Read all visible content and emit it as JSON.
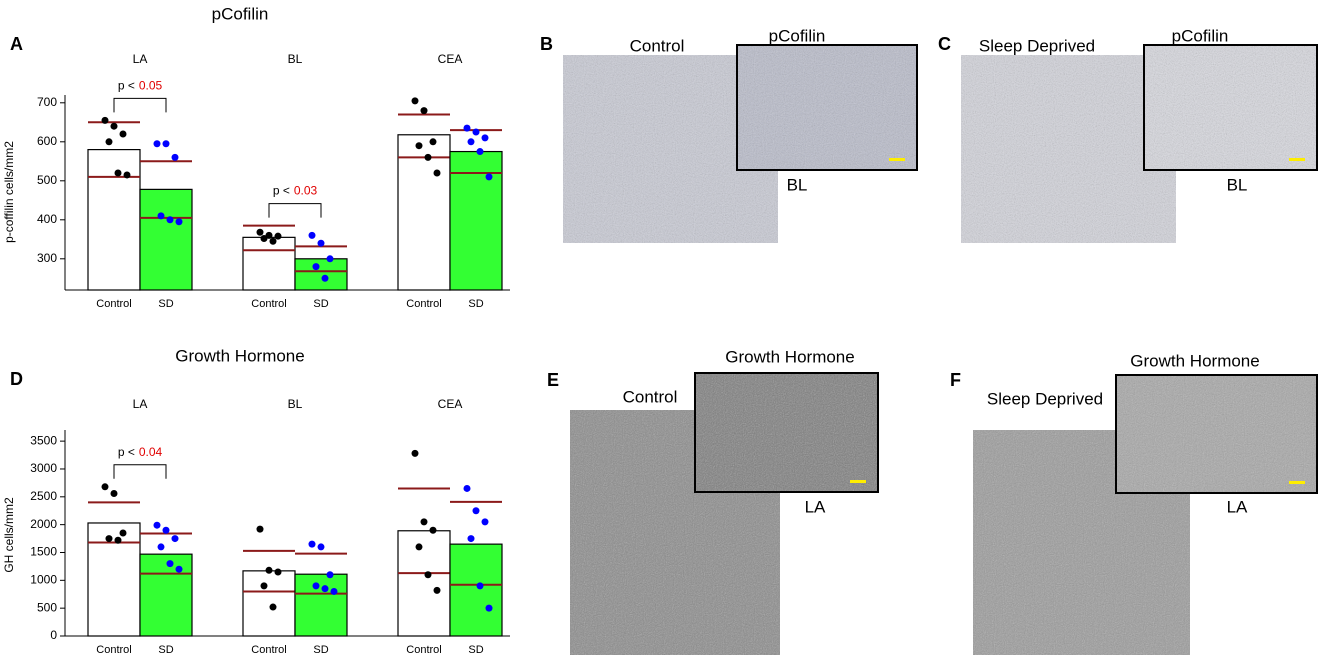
{
  "chart_data": [
    {
      "type": "bar",
      "title": "pCofilin",
      "panel": "A",
      "y_label": "p-coffilin cells/mm2",
      "groups": [
        "LA",
        "BL",
        "CEA"
      ],
      "ylim": [
        220,
        720
      ],
      "yticks": [
        300,
        400,
        500,
        600,
        700
      ],
      "annotations": [
        {
          "text": "p <",
          "value": "0.05"
        },
        {
          "text": "p <",
          "value": "0.03"
        }
      ],
      "series": [
        {
          "name": "Control",
          "color": "#ffffff",
          "point_color": "#000000",
          "sd_color": "#8b1a1a",
          "values": [
            580,
            355,
            618
          ],
          "sd_upper": [
            650,
            385,
            670
          ],
          "sd_lower": [
            510,
            322,
            560
          ],
          "points": [
            [
              655,
              640,
              620,
              600,
              520,
              515
            ],
            [
              368,
              360,
              358,
              352,
              345
            ],
            [
              705,
              680,
              600,
              590,
              560,
              520
            ]
          ]
        },
        {
          "name": "SD",
          "color": "#33ff33",
          "point_color": "#0000ff",
          "sd_color": "#8b1a1a",
          "values": [
            478,
            300,
            575
          ],
          "sd_upper": [
            550,
            332,
            630
          ],
          "sd_lower": [
            405,
            268,
            520
          ],
          "points": [
            [
              595,
              595,
              560,
              410,
              400,
              395
            ],
            [
              360,
              340,
              300,
              280,
              250
            ],
            [
              635,
              625,
              610,
              600,
              575,
              510
            ]
          ]
        }
      ]
    },
    {
      "type": "bar",
      "title": "Growth Hormone",
      "panel": "D",
      "y_label": "GH cells/mm2",
      "groups": [
        "LA",
        "BL",
        "CEA"
      ],
      "ylim": [
        0,
        3700
      ],
      "yticks": [
        0,
        500,
        1000,
        1500,
        2000,
        2500,
        3000,
        3500
      ],
      "annotations": [
        {
          "text": "p <",
          "value": "0.04"
        }
      ],
      "series": [
        {
          "name": "Control",
          "color": "#ffffff",
          "point_color": "#000000",
          "sd_color": "#8b1a1a",
          "values": [
            2030,
            1170,
            1890
          ],
          "sd_upper": [
            2400,
            1530,
            2650
          ],
          "sd_lower": [
            1680,
            800,
            1130
          ],
          "points": [
            [
              2680,
              2560,
              1850,
              1750,
              1720
            ],
            [
              1920,
              1180,
              1150,
              900,
              520
            ],
            [
              3280,
              2050,
              1900,
              1600,
              1100,
              820
            ]
          ]
        },
        {
          "name": "SD",
          "color": "#33ff33",
          "point_color": "#0000ff",
          "sd_color": "#8b1a1a",
          "values": [
            1470,
            1110,
            1650
          ],
          "sd_upper": [
            1840,
            1480,
            2410
          ],
          "sd_lower": [
            1120,
            760,
            920
          ],
          "points": [
            [
              1990,
              1900,
              1750,
              1600,
              1300,
              1200
            ],
            [
              1650,
              1600,
              1100,
              900,
              850,
              800
            ],
            [
              2650,
              2250,
              2050,
              1750,
              900,
              500
            ]
          ]
        }
      ]
    }
  ],
  "images": [
    {
      "panel": "B",
      "label": "Control",
      "inset_label": "pCofilin",
      "region": "BL"
    },
    {
      "panel": "C",
      "label": "Sleep Deprived",
      "inset_label": "pCofilin",
      "region": "BL"
    },
    {
      "panel": "E",
      "label": "Control",
      "inset_label": "Growth Hormone",
      "region": "LA"
    },
    {
      "panel": "F",
      "label": "Sleep Deprived",
      "inset_label": "Growth Hormone",
      "region": "LA"
    }
  ]
}
